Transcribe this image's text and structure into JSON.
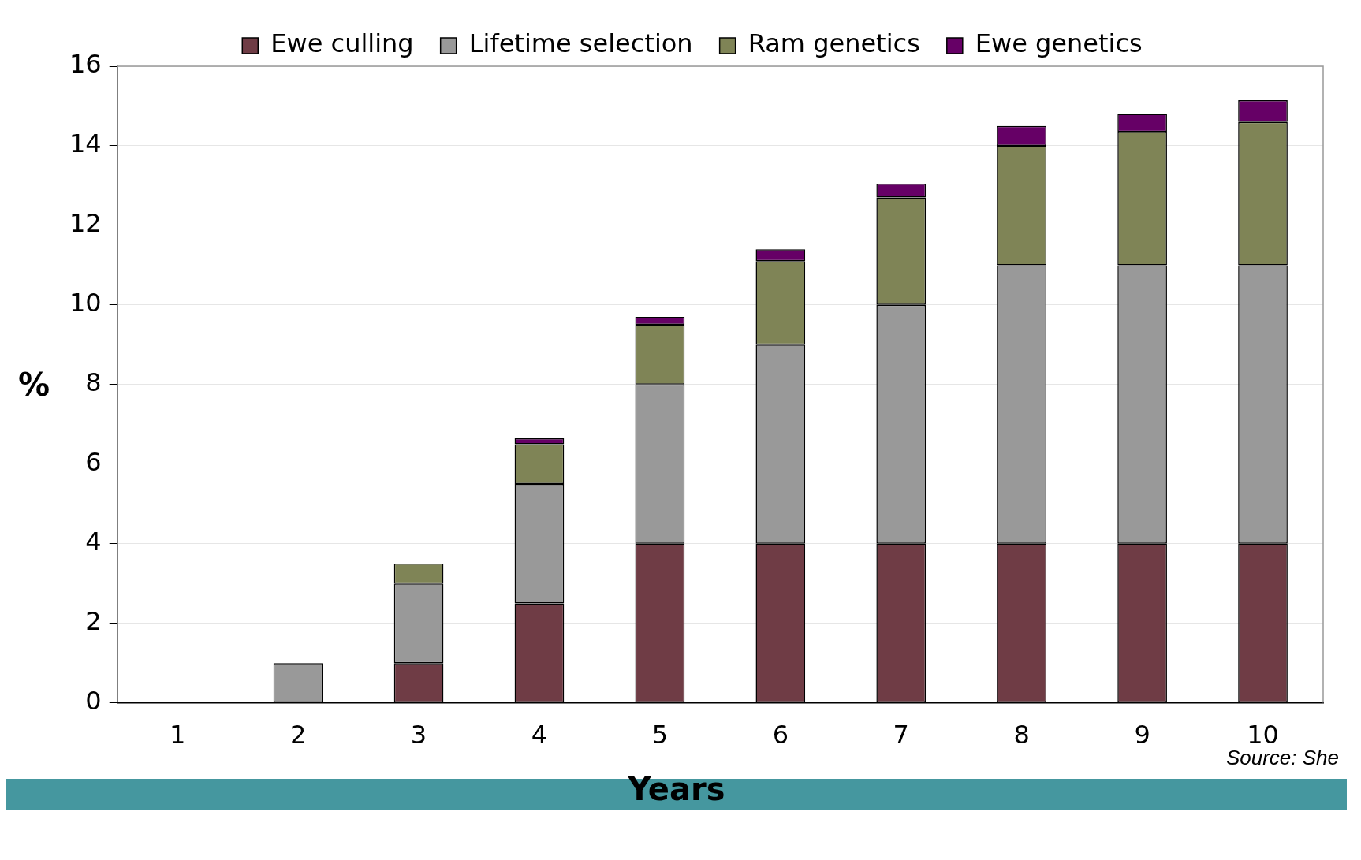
{
  "chart_data": {
    "type": "bar",
    "stacked": true,
    "categories": [
      "1",
      "2",
      "3",
      "4",
      "5",
      "6",
      "7",
      "8",
      "9",
      "10"
    ],
    "series": [
      {
        "name": "Ewe culling",
        "color": "#6f3c45",
        "values": [
          0,
          0,
          1,
          2.5,
          4,
          4,
          4,
          4,
          4,
          4
        ]
      },
      {
        "name": "Lifetime selection",
        "color": "#999999",
        "values": [
          0,
          1,
          2,
          3,
          4,
          5,
          6,
          7,
          7,
          7
        ]
      },
      {
        "name": "Ram genetics",
        "color": "#7f8456",
        "values": [
          0,
          0,
          0.5,
          1,
          1.5,
          2.1,
          2.7,
          3,
          3.35,
          3.6
        ]
      },
      {
        "name": "Ewe genetics",
        "color": "#660066",
        "values": [
          0,
          0,
          0,
          0.15,
          0.2,
          0.3,
          0.35,
          0.5,
          0.45,
          0.55
        ]
      }
    ],
    "ylim": [
      0,
      16
    ],
    "yticks": [
      0,
      2,
      4,
      6,
      8,
      10,
      12,
      14,
      16
    ],
    "grid": "y",
    "legend": "top",
    "xlabel": "Years",
    "ylabel": "%",
    "annotations": [
      "Source: She"
    ]
  }
}
